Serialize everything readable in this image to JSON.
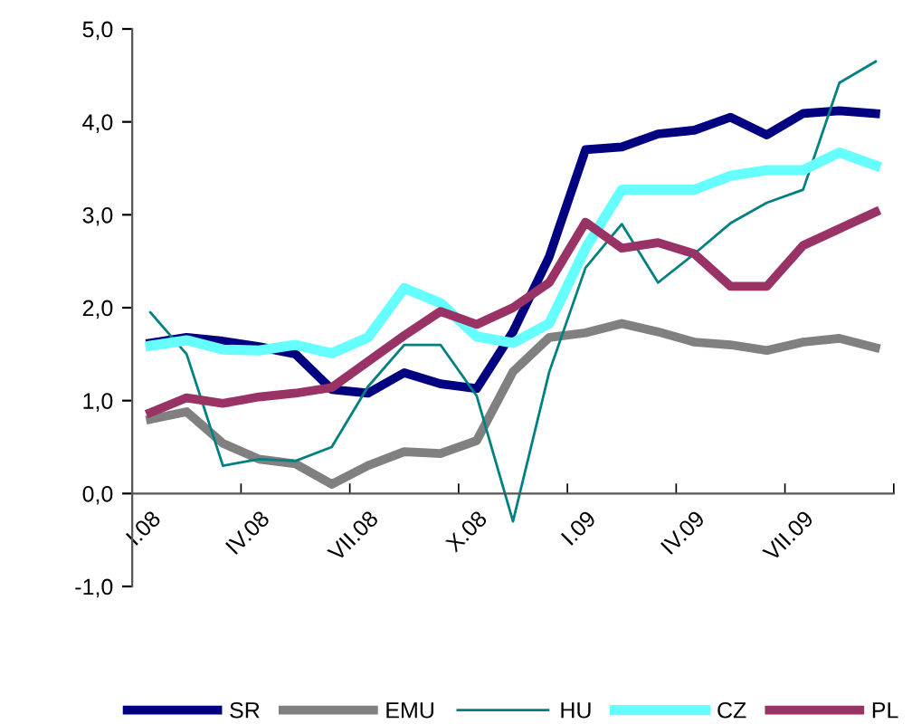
{
  "chart_data": {
    "type": "line",
    "categories": [
      "I.08",
      null,
      null,
      "IV.08",
      null,
      null,
      "VII.08",
      null,
      null,
      "X.08",
      null,
      null,
      "I.09",
      null,
      null,
      "IV.09",
      null,
      null,
      "VII.09",
      null,
      null
    ],
    "series": [
      {
        "name": "SR",
        "color": "#000080",
        "values": [
          1.62,
          1.68,
          1.64,
          1.58,
          1.5,
          1.12,
          1.08,
          1.3,
          1.18,
          1.13,
          1.74,
          2.55,
          3.7,
          3.73,
          3.87,
          3.91,
          4.05,
          3.86,
          4.09,
          4.12,
          4.09
        ]
      },
      {
        "name": "EMU",
        "color": "#808080",
        "values": [
          0.8,
          0.88,
          0.54,
          0.37,
          0.32,
          0.1,
          0.3,
          0.45,
          0.43,
          0.57,
          1.31,
          1.68,
          1.73,
          1.83,
          1.74,
          1.63,
          1.6,
          1.54,
          1.63,
          1.67,
          1.57
        ]
      },
      {
        "name": "HU",
        "color": "#008080",
        "values": [
          1.95,
          1.5,
          0.3,
          0.37,
          0.35,
          0.5,
          1.15,
          1.6,
          1.6,
          1.05,
          -0.3,
          1.31,
          2.43,
          2.9,
          2.27,
          2.58,
          2.91,
          3.13,
          3.27,
          4.42,
          4.65
        ]
      },
      {
        "name": "CZ",
        "color": "#66ffff",
        "values": [
          1.59,
          1.65,
          1.55,
          1.54,
          1.6,
          1.51,
          1.68,
          2.21,
          2.05,
          1.69,
          1.62,
          1.83,
          2.64,
          3.27,
          3.27,
          3.27,
          3.42,
          3.48,
          3.48,
          3.67,
          3.53
        ]
      },
      {
        "name": "PL",
        "color": "#993366",
        "values": [
          0.87,
          1.03,
          0.97,
          1.04,
          1.08,
          1.14,
          1.42,
          1.7,
          1.96,
          1.82,
          2.0,
          2.27,
          2.92,
          2.64,
          2.7,
          2.58,
          2.23,
          2.23,
          2.67,
          2.85,
          3.03
        ]
      }
    ],
    "ylim": [
      -1,
      5
    ],
    "yticks": [
      {
        "value": -1,
        "label": "-1,0"
      },
      {
        "value": 0,
        "label": "0,0"
      },
      {
        "value": 1,
        "label": "1,0"
      },
      {
        "value": 2,
        "label": "2,0"
      },
      {
        "value": 3,
        "label": "3,0"
      },
      {
        "value": 4,
        "label": "4,0"
      },
      {
        "value": 5,
        "label": "5,0"
      }
    ],
    "grid": false,
    "legend": "bottom",
    "marker": "none",
    "line_style": "solid"
  }
}
